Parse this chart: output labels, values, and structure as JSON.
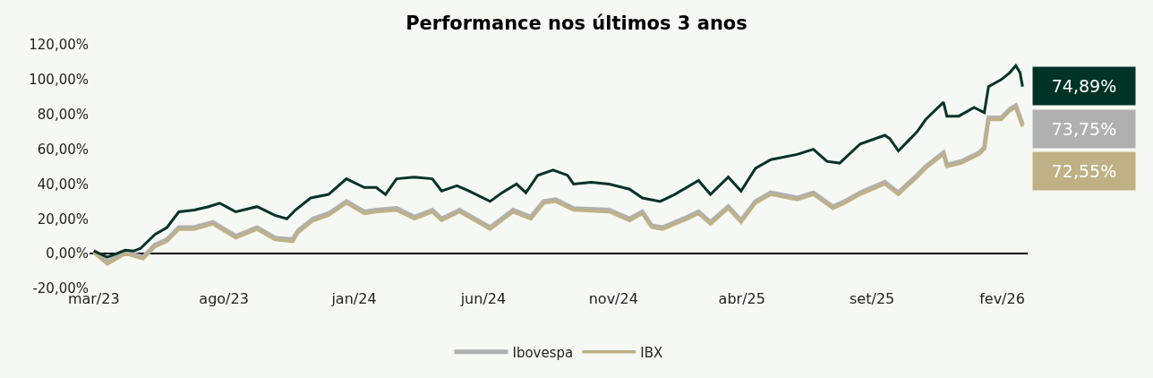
{
  "chart_data": {
    "type": "line",
    "title": "Performance nos últimos 3 anos",
    "annotations": [
      "74,89%",
      "73,75%",
      "72,55%"
    ],
    "xlim": [
      "2023-02-24",
      "2026-03-03"
    ],
    "xticks": [
      {
        "value": "2023-03-01",
        "label": "mar/23"
      },
      {
        "value": "2023-08-01",
        "label": "ago/23"
      },
      {
        "value": "2024-01-01",
        "label": "jan/24"
      },
      {
        "value": "2024-06-01",
        "label": "jun/24"
      },
      {
        "value": "2024-11-01",
        "label": "nov/24"
      },
      {
        "value": "2025-04-01",
        "label": "abr/25"
      },
      {
        "value": "2025-09-01",
        "label": "set/25"
      },
      {
        "value": "2026-02-01",
        "label": "fev/26"
      }
    ],
    "ylim": [
      -20,
      120
    ],
    "yticks": [
      {
        "value": -20,
        "label": "-20,00%"
      },
      {
        "value": 0,
        "label": "0,00%"
      },
      {
        "value": 20,
        "label": "20,00%"
      },
      {
        "value": 40,
        "label": "40,00%"
      },
      {
        "value": 60,
        "label": "60,00%"
      },
      {
        "value": 80,
        "label": "80,00%"
      },
      {
        "value": 100,
        "label": "100,00%"
      },
      {
        "value": 120,
        "label": "120,00%"
      }
    ],
    "grid": false,
    "legend": "bottom",
    "marker": "none",
    "line_style": "solid",
    "series": [
      {
        "color": "#003328",
        "x": [
          "2023-03-01",
          "2023-03-17",
          "2023-04-07",
          "2023-04-17",
          "2023-04-25",
          "2023-05-12",
          "2023-05-26",
          "2023-06-09",
          "2023-06-27",
          "2023-07-14",
          "2023-07-27",
          "2023-08-15",
          "2023-09-09",
          "2023-09-30",
          "2023-10-14",
          "2023-10-24",
          "2023-11-11",
          "2023-12-02",
          "2023-12-23",
          "2024-01-13",
          "2024-01-27",
          "2024-02-07",
          "2024-02-20",
          "2024-03-12",
          "2024-04-02",
          "2024-04-13",
          "2024-05-01",
          "2024-05-15",
          "2024-06-09",
          "2024-06-23",
          "2024-07-10",
          "2024-07-21",
          "2024-08-04",
          "2024-08-22",
          "2024-09-08",
          "2024-09-15",
          "2024-10-06",
          "2024-10-27",
          "2024-11-20",
          "2024-12-05",
          "2024-12-26",
          "2025-01-12",
          "2025-02-09",
          "2025-02-23",
          "2025-03-16",
          "2025-03-31",
          "2025-04-17",
          "2025-05-05",
          "2025-06-05",
          "2025-06-24",
          "2025-07-10",
          "2025-07-25",
          "2025-08-18",
          "2025-09-16",
          "2025-09-22",
          "2025-10-02",
          "2025-10-24",
          "2025-11-03",
          "2025-11-24",
          "2025-11-28",
          "2025-12-12",
          "2025-12-30",
          "2026-01-11",
          "2026-01-16",
          "2026-01-31",
          "2026-02-10",
          "2026-02-17",
          "2026-02-22",
          "2026-02-25"
        ],
        "values": [
          1.5,
          -2,
          2,
          1.5,
          3,
          11,
          15,
          24,
          25,
          27,
          29,
          24,
          27,
          22,
          20,
          25,
          32,
          34,
          43,
          38,
          38,
          34,
          43,
          44,
          43,
          36,
          39,
          36,
          30,
          35,
          40,
          35,
          45,
          48,
          45,
          40,
          41,
          40,
          37,
          32,
          30,
          34,
          42,
          34,
          44,
          36,
          49,
          54,
          57,
          60,
          53,
          52,
          63,
          68,
          66,
          59,
          70,
          77,
          87,
          79,
          79,
          84,
          81,
          96,
          100,
          104,
          108,
          104,
          96
        ]
      },
      {
        "name": "Ibovespa",
        "color": "#b0b0b0",
        "x": [
          "2023-03-01",
          "2023-03-17",
          "2023-04-07",
          "2023-04-28",
          "2023-05-12",
          "2023-05-26",
          "2023-06-09",
          "2023-06-27",
          "2023-07-19",
          "2023-08-15",
          "2023-09-09",
          "2023-09-30",
          "2023-10-21",
          "2023-10-27",
          "2023-11-14",
          "2023-12-02",
          "2023-12-23",
          "2024-01-13",
          "2024-01-27",
          "2024-02-20",
          "2024-03-12",
          "2024-04-02",
          "2024-04-13",
          "2024-05-04",
          "2024-06-09",
          "2024-07-06",
          "2024-07-27",
          "2024-08-11",
          "2024-08-25",
          "2024-09-15",
          "2024-10-27",
          "2024-11-20",
          "2024-12-05",
          "2024-12-16",
          "2024-12-29",
          "2025-01-27",
          "2025-02-09",
          "2025-02-23",
          "2025-03-16",
          "2025-03-31",
          "2025-04-17",
          "2025-05-05",
          "2025-06-05",
          "2025-06-24",
          "2025-07-17",
          "2025-07-31",
          "2025-08-18",
          "2025-09-16",
          "2025-10-02",
          "2025-10-24",
          "2025-11-03",
          "2025-11-24",
          "2025-11-28",
          "2025-12-15",
          "2026-01-05",
          "2026-01-11",
          "2026-01-16",
          "2026-01-31",
          "2026-02-10",
          "2026-02-17",
          "2026-02-25"
        ],
        "values": [
          1.5,
          -5,
          1,
          -2,
          5,
          8,
          15,
          15,
          18,
          10,
          15,
          9,
          8,
          13,
          20,
          23,
          30,
          24,
          25,
          26,
          21,
          25,
          20,
          25,
          15,
          25,
          21,
          30,
          31,
          26,
          25,
          20,
          24,
          16,
          15,
          21,
          24,
          18,
          27,
          19,
          30,
          35,
          32,
          35,
          27,
          30,
          35,
          41,
          35,
          45,
          50,
          58,
          51,
          53,
          58,
          61,
          78,
          78,
          83,
          85,
          74
        ]
      },
      {
        "name": "IBX",
        "color": "#bfb185",
        "x": [
          "2023-03-01",
          "2023-03-17",
          "2023-04-07",
          "2023-04-28",
          "2023-05-12",
          "2023-05-26",
          "2023-06-09",
          "2023-06-27",
          "2023-07-19",
          "2023-08-15",
          "2023-09-09",
          "2023-09-30",
          "2023-10-21",
          "2023-10-27",
          "2023-11-14",
          "2023-12-02",
          "2023-12-23",
          "2024-01-13",
          "2024-01-27",
          "2024-02-20",
          "2024-03-12",
          "2024-04-02",
          "2024-04-13",
          "2024-05-04",
          "2024-06-09",
          "2024-07-06",
          "2024-07-27",
          "2024-08-11",
          "2024-08-25",
          "2024-09-15",
          "2024-10-27",
          "2024-11-20",
          "2024-12-05",
          "2024-12-16",
          "2024-12-29",
          "2025-01-27",
          "2025-02-09",
          "2025-02-23",
          "2025-03-16",
          "2025-03-31",
          "2025-04-17",
          "2025-05-05",
          "2025-06-05",
          "2025-06-24",
          "2025-07-17",
          "2025-07-31",
          "2025-08-18",
          "2025-09-16",
          "2025-10-02",
          "2025-10-24",
          "2025-11-03",
          "2025-11-24",
          "2025-11-28",
          "2025-12-15",
          "2026-01-05",
          "2026-01-11",
          "2026-01-16",
          "2026-01-31",
          "2026-02-10",
          "2026-02-17",
          "2026-02-25"
        ],
        "values": [
          0.5,
          -6,
          0,
          -3,
          4,
          7,
          14,
          14,
          17,
          9,
          14,
          8,
          7,
          12,
          19,
          22,
          29,
          23,
          24,
          25,
          20,
          24,
          19,
          24,
          14,
          24,
          20,
          29,
          30,
          25,
          24,
          19,
          23,
          15,
          14,
          20,
          23,
          17,
          26,
          18,
          29,
          34,
          31,
          34,
          26,
          29,
          34,
          40,
          34,
          44,
          49,
          57,
          50,
          52,
          57,
          60,
          77,
          77,
          82,
          84,
          73
        ]
      }
    ]
  }
}
